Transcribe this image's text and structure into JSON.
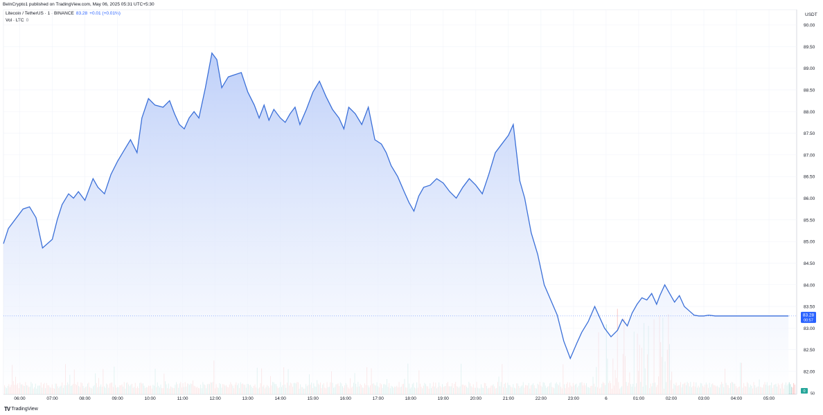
{
  "header": {
    "published": "BeInCrypto1 published on TradingView.com, May 06, 2025 05:31 UTC+5:30"
  },
  "legend": {
    "symbol": "Litecoin / TetherUS · 1 · BINANCE",
    "price": "83.28",
    "change": "+0.01 (+0.01%)",
    "volume_label": "Vol · LTC",
    "volume_value": "0"
  },
  "price_axis": {
    "currency": "USDT",
    "current_price": "83.28",
    "countdown": "00:57",
    "volume_tag": "0",
    "bottom_label": "50"
  },
  "branding": {
    "logo_text": "TV",
    "name": "TradingView"
  },
  "colors": {
    "line": "#3a6fd8",
    "area_top": "#b8cbf8",
    "area_bottom": "#ffffff",
    "vol_up": "#26a69a",
    "vol_down": "#ef5350",
    "badge": "#2962ff"
  },
  "chart_data": {
    "type": "area",
    "title": "",
    "xlabel": "",
    "ylabel": "",
    "ylim": [
      82.0,
      90.0
    ],
    "y_ticks": [
      90.0,
      89.5,
      89.0,
      88.5,
      88.0,
      87.5,
      87.0,
      86.5,
      86.0,
      85.5,
      85.0,
      84.5,
      84.0,
      83.5,
      83.0,
      82.5,
      82.0
    ],
    "x_ticks": [
      {
        "label": "06:00",
        "t": 0.5
      },
      {
        "label": "07:00",
        "t": 1.5
      },
      {
        "label": "08:00",
        "t": 2.5
      },
      {
        "label": "09:00",
        "t": 3.5
      },
      {
        "label": "10:00",
        "t": 4.5
      },
      {
        "label": "11:00",
        "t": 5.5
      },
      {
        "label": "12:00",
        "t": 6.5
      },
      {
        "label": "13:00",
        "t": 7.5
      },
      {
        "label": "14:00",
        "t": 8.5
      },
      {
        "label": "15:00",
        "t": 9.5
      },
      {
        "label": "16:00",
        "t": 10.5
      },
      {
        "label": "17:00",
        "t": 11.5
      },
      {
        "label": "18:00",
        "t": 12.5
      },
      {
        "label": "19:00",
        "t": 13.5
      },
      {
        "label": "20:00",
        "t": 14.5
      },
      {
        "label": "21:00",
        "t": 15.5
      },
      {
        "label": "22:00",
        "t": 16.5
      },
      {
        "label": "23:00",
        "t": 17.5
      },
      {
        "label": "6",
        "t": 18.5
      },
      {
        "label": "01:00",
        "t": 19.5
      },
      {
        "label": "02:00",
        "t": 20.5
      },
      {
        "label": "03:00",
        "t": 21.5
      },
      {
        "label": "04:00",
        "t": 22.5
      },
      {
        "label": "05:00",
        "t": 23.5
      }
    ],
    "x_range": [
      0,
      24.35
    ],
    "series": [
      {
        "x": [
          0,
          0.15,
          0.35,
          0.6,
          0.8,
          1.0,
          1.2,
          1.35,
          1.5,
          1.65,
          1.8,
          2.0,
          2.15,
          2.3,
          2.5,
          2.75,
          2.9,
          3.1,
          3.3,
          3.5,
          3.7,
          3.9,
          4.1,
          4.25,
          4.45,
          4.65,
          4.9,
          5.1,
          5.25,
          5.4,
          5.55,
          5.7,
          5.85,
          6.0,
          6.2,
          6.4,
          6.55,
          6.7,
          6.9,
          7.1,
          7.3,
          7.5,
          7.7,
          7.85,
          8.0,
          8.15,
          8.3,
          8.5,
          8.65,
          8.8,
          8.95,
          9.1,
          9.3,
          9.5,
          9.7,
          9.9,
          10.1,
          10.3,
          10.45,
          10.6,
          10.8,
          11.0,
          11.2,
          11.4,
          11.6,
          11.75,
          11.9,
          12.1,
          12.3,
          12.45,
          12.6,
          12.75,
          12.9,
          13.1,
          13.3,
          13.5,
          13.7,
          13.9,
          14.1,
          14.3,
          14.5,
          14.7,
          14.9,
          15.1,
          15.3,
          15.5,
          15.65,
          15.85,
          16.0,
          16.2,
          16.4,
          16.6,
          16.8,
          17.0,
          17.2,
          17.4,
          17.6,
          17.75,
          17.95,
          18.15,
          18.3,
          18.45,
          18.65,
          18.85,
          19.0,
          19.15,
          19.3,
          19.45,
          19.6,
          19.75,
          19.9,
          20.05,
          20.15,
          20.3,
          20.45,
          20.6,
          20.75,
          20.9,
          21.05,
          21.2,
          21.35,
          21.5,
          21.65,
          21.85,
          22.0,
          22.15,
          22.3,
          22.5,
          22.7,
          22.9,
          23.05,
          23.2,
          23.35,
          23.5,
          23.65,
          23.8,
          23.95,
          24.1
        ],
        "values": [
          84.95,
          85.3,
          85.5,
          85.75,
          85.8,
          85.55,
          84.85,
          84.95,
          85.05,
          85.5,
          85.85,
          86.1,
          86.0,
          86.15,
          85.95,
          86.45,
          86.25,
          86.1,
          86.55,
          86.85,
          87.1,
          87.35,
          87.05,
          87.85,
          88.3,
          88.15,
          88.1,
          88.25,
          87.95,
          87.7,
          87.6,
          87.85,
          88.0,
          87.85,
          88.55,
          89.35,
          89.2,
          88.55,
          88.8,
          88.85,
          88.9,
          88.45,
          88.15,
          87.85,
          88.15,
          87.8,
          88.05,
          87.85,
          87.75,
          87.95,
          88.1,
          87.7,
          88.05,
          88.45,
          88.7,
          88.35,
          88.05,
          87.85,
          87.6,
          88.1,
          87.95,
          87.7,
          88.1,
          87.35,
          87.25,
          87.05,
          86.75,
          86.5,
          86.15,
          85.9,
          85.7,
          86.05,
          86.25,
          86.3,
          86.45,
          86.35,
          86.15,
          86.0,
          86.25,
          86.45,
          86.3,
          86.1,
          86.55,
          87.05,
          87.25,
          87.45,
          87.7,
          86.4,
          86.0,
          85.2,
          84.7,
          84.0,
          83.65,
          83.3,
          82.7,
          82.3,
          82.65,
          82.9,
          83.15,
          83.5,
          83.25,
          83.0,
          82.8,
          82.95,
          83.2,
          83.05,
          83.35,
          83.55,
          83.7,
          83.65,
          83.8,
          83.55,
          83.75,
          84.0,
          83.8,
          83.6,
          83.75,
          83.5,
          83.4,
          83.3,
          83.28,
          83.28,
          83.3,
          83.28,
          83.28,
          83.28,
          83.28,
          83.28,
          83.28,
          83.28,
          83.28,
          83.28,
          83.28,
          83.28,
          83.28,
          83.28,
          83.28,
          83.28
        ]
      }
    ]
  }
}
